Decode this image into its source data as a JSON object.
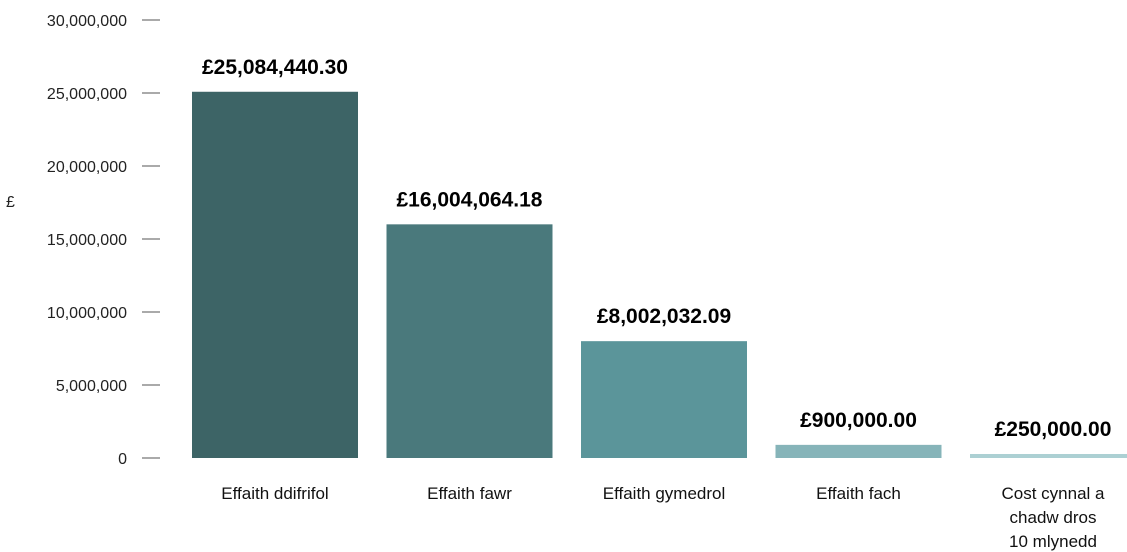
{
  "chart_data": {
    "type": "bar",
    "title": "",
    "xlabel": "",
    "ylabel": "£",
    "ylim": [
      0,
      30000000
    ],
    "yticks": [
      {
        "value": 0,
        "label": "0"
      },
      {
        "value": 5000000,
        "label": "5,000,000"
      },
      {
        "value": 10000000,
        "label": "10,000,000"
      },
      {
        "value": 15000000,
        "label": "15,000,000"
      },
      {
        "value": 20000000,
        "label": "20,000,000"
      },
      {
        "value": 25000000,
        "label": "25,000,000"
      },
      {
        "value": 30000000,
        "label": "30,000,000"
      }
    ],
    "categories": [
      [
        "Effaith ddifrifol"
      ],
      [
        "Effaith fawr"
      ],
      [
        "Effaith gymedrol"
      ],
      [
        "Effaith fach"
      ],
      [
        "Cost cynnal a",
        "chadw dros",
        "10 mlynedd"
      ]
    ],
    "values": [
      25084440.3,
      16004064.18,
      8002032.09,
      900000.0,
      250000.0
    ],
    "data_labels": [
      "£25,084,440.30",
      "£16,004,064.18",
      "£8,002,032.09",
      "£900,000.00",
      "£250,000.00"
    ],
    "colors": [
      "#3d6466",
      "#4a797c",
      "#5b959a",
      "#86b4b9",
      "#acd0d3"
    ],
    "grid": false,
    "legend": "none"
  }
}
